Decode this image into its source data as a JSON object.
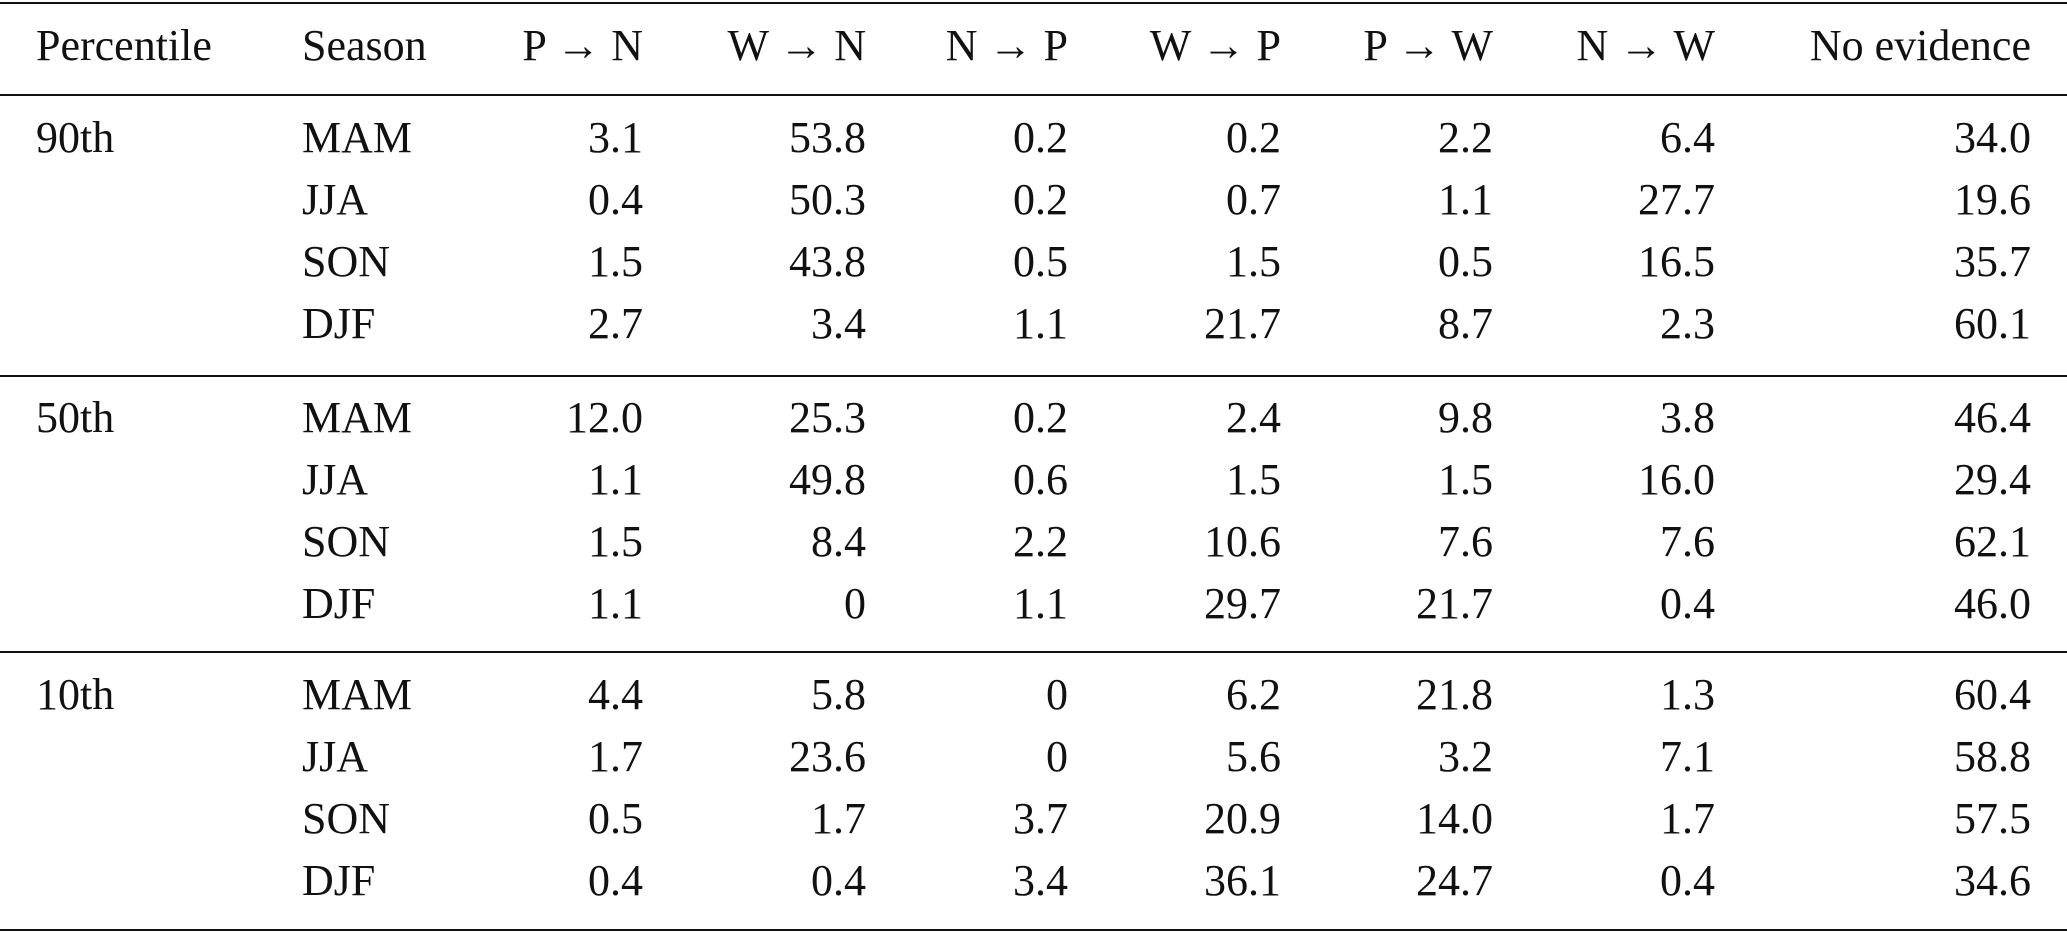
{
  "table": {
    "header": [
      "Percentile",
      "Season",
      "P → N",
      "W → N",
      "N → P",
      "W → P",
      "P → W",
      "N → W",
      "No evidence"
    ],
    "groups": [
      {
        "label": "90th",
        "rows": [
          [
            "MAM",
            "3.1",
            "53.8",
            "0.2",
            "0.2",
            "2.2",
            "6.4",
            "34.0"
          ],
          [
            "JJA",
            "0.4",
            "50.3",
            "0.2",
            "0.7",
            "1.1",
            "27.7",
            "19.6"
          ],
          [
            "SON",
            "1.5",
            "43.8",
            "0.5",
            "1.5",
            "0.5",
            "16.5",
            "35.7"
          ],
          [
            "DJF",
            "2.7",
            "3.4",
            "1.1",
            "21.7",
            "8.7",
            "2.3",
            "60.1"
          ]
        ]
      },
      {
        "label": "50th",
        "rows": [
          [
            "MAM",
            "12.0",
            "25.3",
            "0.2",
            "2.4",
            "9.8",
            "3.8",
            "46.4"
          ],
          [
            "JJA",
            "1.1",
            "49.8",
            "0.6",
            "1.5",
            "1.5",
            "16.0",
            "29.4"
          ],
          [
            "SON",
            "1.5",
            "8.4",
            "2.2",
            "10.6",
            "7.6",
            "7.6",
            "62.1"
          ],
          [
            "DJF",
            "1.1",
            "0",
            "1.1",
            "29.7",
            "21.7",
            "0.4",
            "46.0"
          ]
        ]
      },
      {
        "label": "10th",
        "rows": [
          [
            "MAM",
            "4.4",
            "5.8",
            "0",
            "6.2",
            "21.8",
            "1.3",
            "60.4"
          ],
          [
            "JJA",
            "1.7",
            "23.6",
            "0",
            "5.6",
            "3.2",
            "7.1",
            "58.8"
          ],
          [
            "SON",
            "0.5",
            "1.7",
            "3.7",
            "20.9",
            "14.0",
            "1.7",
            "57.5"
          ],
          [
            "DJF",
            "0.4",
            "0.4",
            "3.4",
            "36.1",
            "24.7",
            "0.4",
            "34.6"
          ]
        ]
      }
    ]
  }
}
